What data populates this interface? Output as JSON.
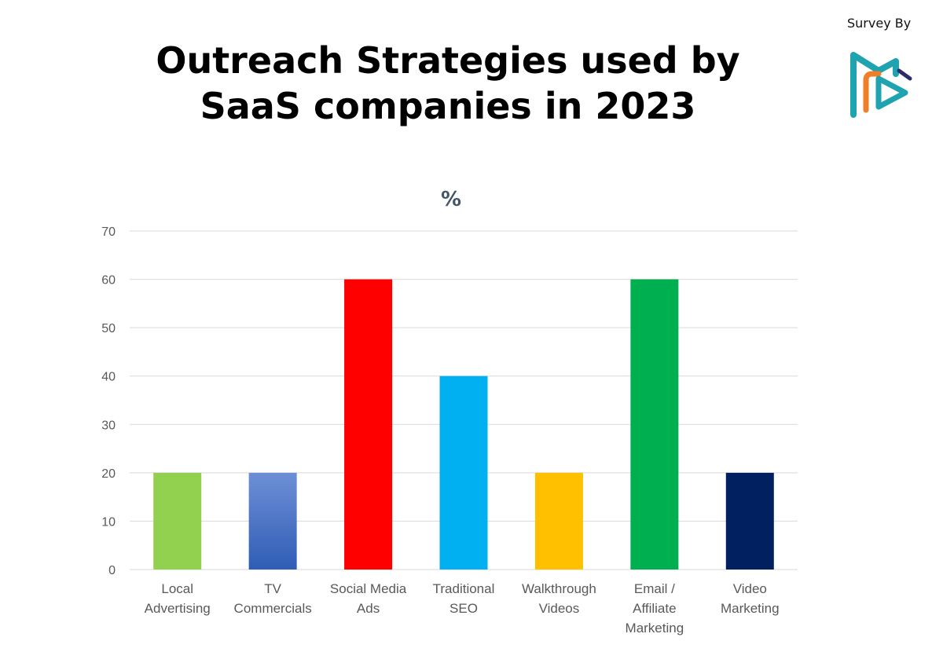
{
  "header": {
    "survey_by": "Survey By",
    "logo_icon": "play-logo-icon",
    "logo_colors": {
      "teal": "#1fa3b0",
      "orange": "#f07e26",
      "dark": "#2b2b6e"
    }
  },
  "title": "Outreach Strategies used by SaaS companies in 2023",
  "chart_data": {
    "type": "bar",
    "title": "%",
    "xlabel": "",
    "ylabel": "",
    "ylim": [
      0,
      70
    ],
    "yticks": [
      0,
      10,
      20,
      30,
      40,
      50,
      60,
      70
    ],
    "grid": true,
    "legend": "none",
    "categories": [
      [
        "Local",
        "Advertising"
      ],
      [
        "TV",
        "Commercials"
      ],
      [
        "Social Media",
        "Ads"
      ],
      [
        "Traditional",
        "SEO"
      ],
      [
        "Walkthrough",
        "Videos"
      ],
      [
        "Email /",
        "Affiliate",
        "Marketing"
      ],
      [
        "Video",
        "Marketing"
      ]
    ],
    "values": [
      20,
      20,
      60,
      40,
      20,
      60,
      20
    ],
    "colors": [
      "#92d050",
      "#4472c4",
      "#ff0000",
      "#00b0f0",
      "#ffc000",
      "#00b050",
      "#002060"
    ]
  }
}
